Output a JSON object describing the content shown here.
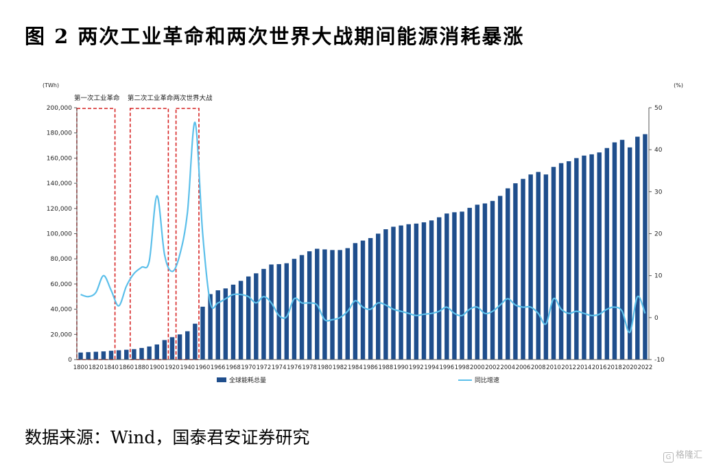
{
  "title": "图 2 两次工业革命和两次世界大战期间能源消耗暴涨",
  "source": "数据来源：Wind，国泰君安证券研究",
  "watermark": "格隆汇",
  "chart_data": {
    "type": "bar+line",
    "left_axis_unit": "(TWh)",
    "right_axis_unit": "(%)",
    "left_ylim": [
      0,
      200000
    ],
    "left_ticks": [
      "0",
      "20,000",
      "40,000",
      "60,000",
      "80,000",
      "100,000",
      "120,000",
      "140,000",
      "160,000",
      "180,000",
      "200,000"
    ],
    "right_ylim": [
      -10,
      50
    ],
    "right_ticks": [
      "-10",
      "0",
      "10",
      "20",
      "30",
      "40",
      "50"
    ],
    "x_tick_labels": [
      "1800",
      "1820",
      "1840",
      "1860",
      "1880",
      "1900",
      "1920",
      "1940",
      "1960",
      "1966",
      "1968",
      "1970",
      "1972",
      "1974",
      "1976",
      "1978",
      "1980",
      "1982",
      "1984",
      "1986",
      "1988",
      "1990",
      "1992",
      "1994",
      "1996",
      "1998",
      "2000",
      "2002",
      "2004",
      "2006",
      "2008",
      "2010",
      "2012",
      "2014",
      "2016",
      "2018",
      "2020",
      "2022"
    ],
    "categories": [
      "1800",
      "1810",
      "1820",
      "1830",
      "1840",
      "1850",
      "1860",
      "1870",
      "1880",
      "1890",
      "1900",
      "1910",
      "1920",
      "1930",
      "1940",
      "1950",
      "1960",
      "1965",
      "1966",
      "1967",
      "1968",
      "1969",
      "1970",
      "1971",
      "1972",
      "1973",
      "1974",
      "1975",
      "1976",
      "1977",
      "1978",
      "1979",
      "1980",
      "1981",
      "1982",
      "1983",
      "1984",
      "1985",
      "1986",
      "1987",
      "1988",
      "1989",
      "1990",
      "1991",
      "1992",
      "1993",
      "1994",
      "1995",
      "1996",
      "1997",
      "1998",
      "1999",
      "2000",
      "2001",
      "2002",
      "2003",
      "2004",
      "2005",
      "2006",
      "2007",
      "2008",
      "2009",
      "2010",
      "2011",
      "2012",
      "2013",
      "2014",
      "2015",
      "2016",
      "2017",
      "2018",
      "2019",
      "2020",
      "2021",
      "2022"
    ],
    "series": [
      {
        "name": "全球能耗总量",
        "kind": "bar",
        "axis": "left",
        "color": "#1f4e8c",
        "values": [
          5600,
          5900,
          6200,
          6500,
          7000,
          7400,
          7800,
          8300,
          9200,
          10400,
          12000,
          15500,
          17800,
          20000,
          22500,
          28500,
          42000,
          52000,
          55000,
          56500,
          59500,
          62500,
          66000,
          68500,
          72000,
          75500,
          75800,
          76500,
          80000,
          83000,
          86000,
          88000,
          87500,
          87000,
          87000,
          88500,
          92500,
          94500,
          96500,
          100000,
          103500,
          105500,
          106500,
          107500,
          108000,
          109000,
          110500,
          113000,
          116000,
          117000,
          117500,
          120500,
          123000,
          124000,
          126000,
          130000,
          136000,
          140000,
          143500,
          147000,
          149000,
          147000,
          153000,
          156000,
          157500,
          160000,
          162000,
          163000,
          164500,
          168000,
          172500,
          174500,
          168500,
          177000,
          179000
        ]
      },
      {
        "name": "同比增速",
        "kind": "line",
        "axis": "right",
        "color": "#5bbfea",
        "x": [
          "1800",
          "1810",
          "1820",
          "1830",
          "1840",
          "1850",
          "1860",
          "1870",
          "1880",
          "1890",
          "1900",
          "1910",
          "1920",
          "1930",
          "1940",
          "1950",
          "1960",
          "1965",
          "1966",
          "1967",
          "1968",
          "1969",
          "1970",
          "1971",
          "1972",
          "1973",
          "1974",
          "1975",
          "1976",
          "1977",
          "1978",
          "1979",
          "1980",
          "1981",
          "1982",
          "1983",
          "1984",
          "1985",
          "1986",
          "1987",
          "1988",
          "1989",
          "1990",
          "1991",
          "1992",
          "1993",
          "1994",
          "1995",
          "1996",
          "1997",
          "1998",
          "1999",
          "2000",
          "2001",
          "2002",
          "2003",
          "2004",
          "2005",
          "2006",
          "2007",
          "2008",
          "2009",
          "2010",
          "2011",
          "2012",
          "2013",
          "2014",
          "2015",
          "2016",
          "2017",
          "2018",
          "2019",
          "2020",
          "2021",
          "2022"
        ],
        "values": [
          5.5,
          5.0,
          6.0,
          10.0,
          6.5,
          2.8,
          7.5,
          10.5,
          12.0,
          13.5,
          29.0,
          15.0,
          11.0,
          15.0,
          25.0,
          46.5,
          20.0,
          3.5,
          3.5,
          4.5,
          5.5,
          5.5,
          5.0,
          3.5,
          5.0,
          3.5,
          0.5,
          0.2,
          4.5,
          3.5,
          3.5,
          3.0,
          -0.5,
          -0.5,
          0.0,
          1.5,
          4.0,
          2.5,
          2.0,
          3.5,
          3.0,
          2.0,
          1.5,
          1.0,
          0.5,
          0.8,
          1.0,
          1.5,
          2.5,
          1.0,
          0.5,
          2.0,
          2.5,
          1.0,
          1.5,
          3.0,
          4.5,
          3.0,
          2.5,
          2.5,
          1.0,
          -1.5,
          4.5,
          2.0,
          1.0,
          1.5,
          1.0,
          0.5,
          0.8,
          2.0,
          2.5,
          1.5,
          -3.5,
          5.0,
          1.0
        ]
      }
    ],
    "annotations": [
      {
        "label": "第一次工业革命",
        "from": "1800",
        "to": "1840"
      },
      {
        "label": "第二次工业革命",
        "from": "1870",
        "to": "1910"
      },
      {
        "label": "两次世界大战",
        "from": "1930",
        "to": "1950"
      }
    ],
    "legend_position": "bottom",
    "grid": false
  }
}
